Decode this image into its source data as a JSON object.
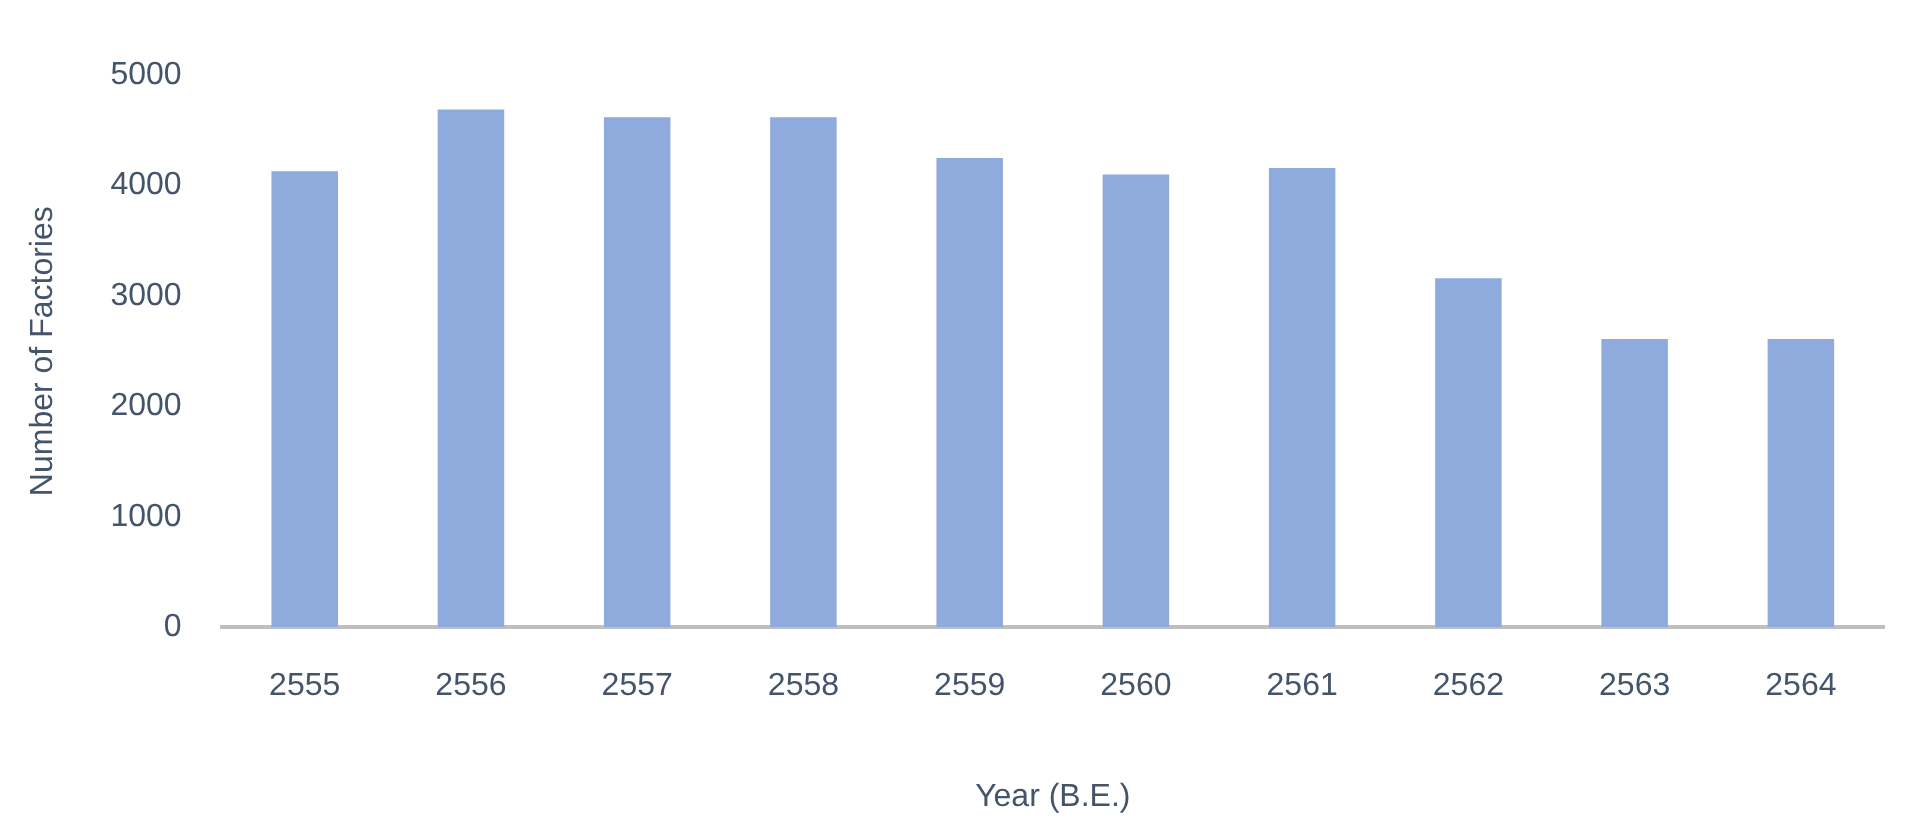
{
  "chart_data": {
    "type": "bar",
    "xlabel": "Year (B.E.)",
    "ylabel": "Number of Factories",
    "categories": [
      "2555",
      "2556",
      "2557",
      "2558",
      "2559",
      "2560",
      "2561",
      "2562",
      "2563",
      "2564"
    ],
    "values": [
      4130,
      4690,
      4620,
      4620,
      4250,
      4100,
      4160,
      3160,
      2610,
      2610
    ],
    "color": "#8faadc",
    "ylim": [
      0,
      5000
    ],
    "yticks": [
      0,
      1000,
      2000,
      3000,
      4000,
      5000
    ],
    "grid": false,
    "legend": false
  }
}
